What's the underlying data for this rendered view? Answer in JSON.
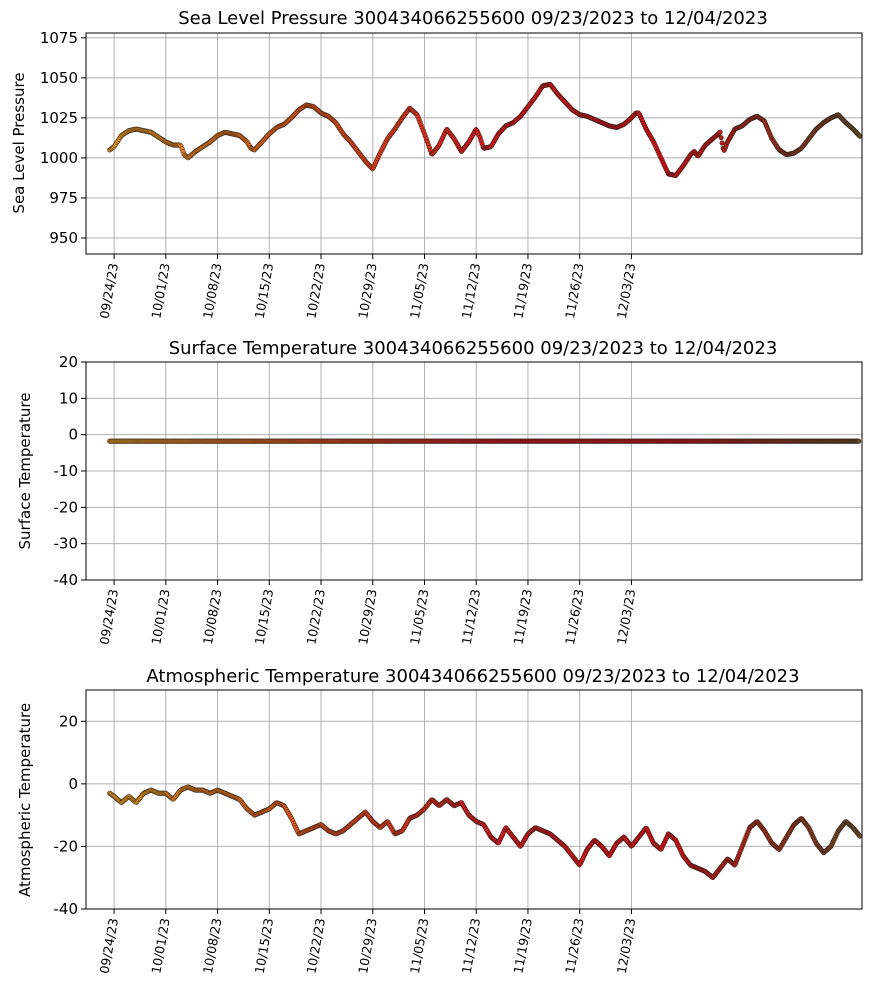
{
  "chart_data": [
    {
      "type": "scatter",
      "title": "Sea Level Pressure 300434066255600  09/23/2023 to 12/04/2023",
      "ylabel": "Sea Level Pressure",
      "xlabel": "",
      "ylim": [
        940,
        1078
      ],
      "yticks": [
        950,
        975,
        1000,
        1025,
        1050,
        1075
      ],
      "xlim_days": [
        -3.8,
        101.2
      ],
      "xticks": [
        "09/24/23",
        "10/01/23",
        "10/08/23",
        "10/15/23",
        "10/22/23",
        "10/29/23",
        "11/05/23",
        "11/12/23",
        "11/19/23",
        "11/26/23",
        "12/03/23"
      ],
      "grid": true,
      "x_start": "09/23/2023",
      "x_end": "12/04/2023",
      "series": [
        {
          "values_by_day": [
            [
              -0.6,
              1005
            ],
            [
              0,
              1007
            ],
            [
              1,
              1014
            ],
            [
              2,
              1017
            ],
            [
              3,
              1018
            ],
            [
              4,
              1017
            ],
            [
              5,
              1016
            ],
            [
              6,
              1013
            ],
            [
              7,
              1010
            ],
            [
              8,
              1008
            ],
            [
              8.5,
              1008
            ],
            [
              9,
              1008
            ],
            [
              9.5,
              1002
            ],
            [
              10,
              1000
            ],
            [
              11,
              1004
            ],
            [
              12,
              1007
            ],
            [
              13,
              1010
            ],
            [
              14,
              1014
            ],
            [
              15,
              1016
            ],
            [
              16,
              1015
            ],
            [
              17,
              1014
            ],
            [
              18,
              1010
            ],
            [
              18.5,
              1006
            ],
            [
              19,
              1005
            ],
            [
              20,
              1010
            ],
            [
              21,
              1015
            ],
            [
              22,
              1019
            ],
            [
              23,
              1021
            ],
            [
              24,
              1025
            ],
            [
              25,
              1030
            ],
            [
              26,
              1033
            ],
            [
              27,
              1032
            ],
            [
              28,
              1028
            ],
            [
              29,
              1026
            ],
            [
              30,
              1022
            ],
            [
              31,
              1015
            ],
            [
              32,
              1010
            ],
            [
              33,
              1004
            ],
            [
              34,
              998
            ],
            [
              35,
              993
            ],
            [
              36,
              1003
            ],
            [
              37,
              1012
            ],
            [
              38,
              1018
            ],
            [
              39,
              1025
            ],
            [
              40,
              1031
            ],
            [
              41,
              1027
            ],
            [
              42,
              1015
            ],
            [
              43,
              1002
            ],
            [
              44,
              1008
            ],
            [
              45,
              1018
            ],
            [
              46,
              1012
            ],
            [
              47,
              1004
            ],
            [
              48,
              1010
            ],
            [
              49,
              1018
            ],
            [
              49.5,
              1013
            ],
            [
              50,
              1006
            ],
            [
              51,
              1007
            ],
            [
              52,
              1015
            ],
            [
              53,
              1020
            ],
            [
              54,
              1022
            ],
            [
              55,
              1026
            ],
            [
              56,
              1032
            ],
            [
              57,
              1038
            ],
            [
              58,
              1045
            ],
            [
              59,
              1046
            ],
            [
              60,
              1040
            ],
            [
              61,
              1035
            ],
            [
              62,
              1030
            ],
            [
              63,
              1027
            ],
            [
              64,
              1026
            ],
            [
              65,
              1024
            ],
            [
              66,
              1022
            ],
            [
              67,
              1020
            ],
            [
              68,
              1019
            ],
            [
              69,
              1021
            ],
            [
              70,
              1025
            ],
            [
              70.6,
              1028
            ],
            [
              71,
              1028
            ],
            [
              72,
              1018
            ],
            [
              73,
              1010
            ],
            [
              74,
              1000
            ],
            [
              75,
              990
            ],
            [
              76,
              989
            ],
            [
              77,
              995
            ],
            [
              78,
              1002
            ],
            [
              78.5,
              1004
            ],
            [
              79,
              1001
            ],
            [
              80,
              1008
            ],
            [
              81,
              1012
            ],
            [
              82,
              1016
            ],
            [
              82.5,
              1004
            ],
            [
              83,
              1010
            ],
            [
              84,
              1018
            ],
            [
              85,
              1020
            ],
            [
              86,
              1024
            ],
            [
              87,
              1026
            ],
            [
              88,
              1023
            ],
            [
              89,
              1012
            ],
            [
              90,
              1005
            ],
            [
              91,
              1002
            ],
            [
              92,
              1003
            ],
            [
              93,
              1006
            ],
            [
              94,
              1012
            ],
            [
              95,
              1018
            ],
            [
              96,
              1022
            ],
            [
              97,
              1025
            ],
            [
              98,
              1027
            ],
            [
              99,
              1022
            ],
            [
              100,
              1018
            ],
            [
              101,
              1013
            ]
          ]
        }
      ]
    },
    {
      "type": "scatter",
      "title": "Surface Temperature 300434066255600  09/23/2023 to 12/04/2023",
      "ylabel": "Surface Temperature",
      "xlabel": "",
      "ylim": [
        -40,
        20
      ],
      "yticks": [
        -40,
        -30,
        -20,
        -10,
        0,
        10,
        20
      ],
      "xlim_days": [
        -3.8,
        101.2
      ],
      "xticks": [
        "09/24/23",
        "10/01/23",
        "10/08/23",
        "10/15/23",
        "10/22/23",
        "10/29/23",
        "11/05/23",
        "11/12/23",
        "11/19/23",
        "11/26/23",
        "12/03/23"
      ],
      "grid": true,
      "series": [
        {
          "values_by_day": [
            [
              -0.6,
              -1.8
            ],
            [
              100.8,
              -1.8
            ]
          ],
          "constant_value": -1.8
        }
      ]
    },
    {
      "type": "scatter",
      "title": "Atmospheric Temperature 300434066255600  09/23/2023 to 12/04/2023",
      "ylabel": "Atmospheric Temperature",
      "xlabel": "",
      "ylim": [
        -40,
        30
      ],
      "yticks": [
        -40,
        -20,
        0,
        20
      ],
      "xlim_days": [
        -3.8,
        101.2
      ],
      "xticks": [
        "09/24/23",
        "10/01/23",
        "10/08/23",
        "10/15/23",
        "10/22/23",
        "10/29/23",
        "11/05/23",
        "11/12/23",
        "11/19/23",
        "11/26/23",
        "12/03/23"
      ],
      "grid": true,
      "series": [
        {
          "values_by_day": [
            [
              -0.6,
              -3
            ],
            [
              0,
              -4
            ],
            [
              1,
              -6
            ],
            [
              2,
              -4
            ],
            [
              3,
              -6
            ],
            [
              4,
              -3
            ],
            [
              5,
              -2
            ],
            [
              6,
              -3
            ],
            [
              7,
              -3
            ],
            [
              8,
              -5
            ],
            [
              9,
              -2
            ],
            [
              10,
              -1
            ],
            [
              11,
              -2
            ],
            [
              12,
              -2
            ],
            [
              13,
              -3
            ],
            [
              14,
              -2
            ],
            [
              15,
              -3
            ],
            [
              16,
              -4
            ],
            [
              17,
              -5
            ],
            [
              18,
              -8
            ],
            [
              19,
              -10
            ],
            [
              20,
              -9
            ],
            [
              21,
              -8
            ],
            [
              22,
              -6
            ],
            [
              23,
              -7
            ],
            [
              24,
              -11
            ],
            [
              25,
              -16
            ],
            [
              26,
              -15
            ],
            [
              27,
              -14
            ],
            [
              28,
              -13
            ],
            [
              29,
              -15
            ],
            [
              30,
              -16
            ],
            [
              31,
              -15
            ],
            [
              32,
              -13
            ],
            [
              33,
              -11
            ],
            [
              34,
              -9
            ],
            [
              35,
              -12
            ],
            [
              36,
              -14
            ],
            [
              37,
              -12
            ],
            [
              38,
              -16
            ],
            [
              39,
              -15
            ],
            [
              40,
              -11
            ],
            [
              41,
              -10
            ],
            [
              42,
              -8
            ],
            [
              43,
              -5
            ],
            [
              44,
              -7
            ],
            [
              45,
              -5
            ],
            [
              46,
              -7
            ],
            [
              47,
              -6
            ],
            [
              48,
              -10
            ],
            [
              49,
              -12
            ],
            [
              50,
              -13
            ],
            [
              51,
              -17
            ],
            [
              52,
              -19
            ],
            [
              53,
              -14
            ],
            [
              54,
              -17
            ],
            [
              55,
              -20
            ],
            [
              56,
              -16
            ],
            [
              57,
              -14
            ],
            [
              58,
              -15
            ],
            [
              59,
              -16
            ],
            [
              60,
              -18
            ],
            [
              61,
              -20
            ],
            [
              62,
              -23
            ],
            [
              63,
              -26
            ],
            [
              64,
              -21
            ],
            [
              65,
              -18
            ],
            [
              66,
              -20
            ],
            [
              67,
              -23
            ],
            [
              68,
              -19
            ],
            [
              69,
              -17
            ],
            [
              70,
              -20
            ],
            [
              71,
              -17
            ],
            [
              72,
              -14
            ],
            [
              73,
              -19
            ],
            [
              74,
              -21
            ],
            [
              75,
              -16
            ],
            [
              76,
              -18
            ],
            [
              77,
              -23
            ],
            [
              78,
              -26
            ],
            [
              79,
              -27
            ],
            [
              80,
              -28
            ],
            [
              81,
              -30
            ],
            [
              82,
              -27
            ],
            [
              83,
              -24
            ],
            [
              84,
              -26
            ],
            [
              85,
              -20
            ],
            [
              86,
              -14
            ],
            [
              87,
              -12
            ],
            [
              88,
              -15
            ],
            [
              89,
              -19
            ],
            [
              90,
              -21
            ],
            [
              91,
              -17
            ],
            [
              92,
              -13
            ],
            [
              93,
              -11
            ],
            [
              94,
              -14
            ],
            [
              95,
              -19
            ],
            [
              96,
              -22
            ],
            [
              97,
              -20
            ],
            [
              98,
              -15
            ],
            [
              99,
              -12
            ],
            [
              100,
              -14
            ],
            [
              101,
              -17
            ]
          ]
        }
      ]
    }
  ],
  "colors": {
    "marker_edge": "#1a1a1a",
    "gradient": [
      "#f2a01e",
      "#ee5b16",
      "#e01818",
      "#d81010",
      "#6b4a20"
    ]
  }
}
